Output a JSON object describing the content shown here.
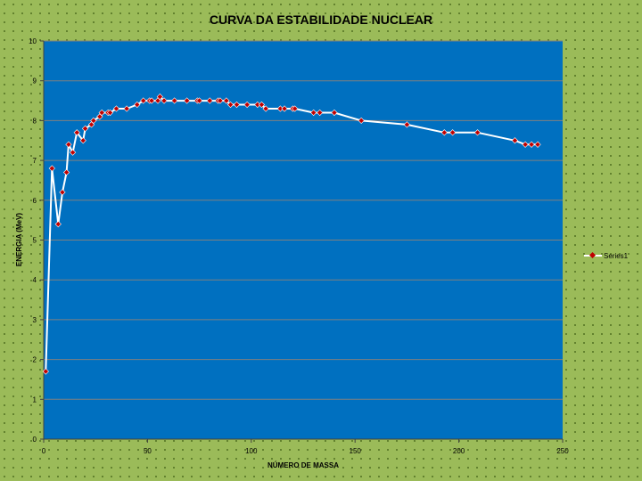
{
  "chart_data": {
    "type": "line",
    "title": "CURVA  DA  ESTABILIDADE  NUCLEAR",
    "xlabel": "NÚMERO DE MASSA",
    "ylabel": "ENERGIA  (MeV)",
    "xlim": [
      0,
      250
    ],
    "ylim": [
      0,
      10
    ],
    "x_ticks": [
      "0",
      "50",
      "100",
      "150",
      "200",
      "250"
    ],
    "y_ticks": [
      "0",
      "1",
      "2",
      "3",
      "4",
      "5",
      "6",
      "7",
      "8",
      "9",
      "10"
    ],
    "grid": "horizontal",
    "legend_position": "right",
    "colors": {
      "plot_area": "#0070c0",
      "line": "#ffffff",
      "marker": "#c00000",
      "gridline": "#7f7f7f"
    },
    "series": [
      {
        "name": "Series1",
        "x": [
          1,
          4,
          7,
          9,
          11,
          12,
          14,
          16,
          19,
          20,
          23,
          24,
          27,
          28,
          31,
          32,
          35,
          40,
          45,
          48,
          51,
          52,
          55,
          56,
          58,
          63,
          69,
          74,
          75,
          80,
          84,
          85,
          88,
          90,
          93,
          98,
          103,
          105,
          107,
          114,
          116,
          120,
          121,
          130,
          133,
          140,
          153,
          175,
          193,
          197,
          209,
          227,
          232,
          235,
          238
        ],
        "y": [
          1.7,
          6.8,
          5.4,
          6.2,
          6.7,
          7.4,
          7.2,
          7.7,
          7.5,
          7.8,
          7.9,
          8.0,
          8.1,
          8.2,
          8.2,
          8.2,
          8.3,
          8.3,
          8.4,
          8.5,
          8.5,
          8.5,
          8.5,
          8.6,
          8.5,
          8.5,
          8.5,
          8.5,
          8.5,
          8.5,
          8.5,
          8.5,
          8.5,
          8.4,
          8.4,
          8.4,
          8.4,
          8.4,
          8.3,
          8.3,
          8.3,
          8.3,
          8.3,
          8.2,
          8.2,
          8.2,
          8.0,
          7.9,
          7.7,
          7.7,
          7.7,
          7.5,
          7.4,
          7.4,
          7.4
        ]
      }
    ]
  }
}
